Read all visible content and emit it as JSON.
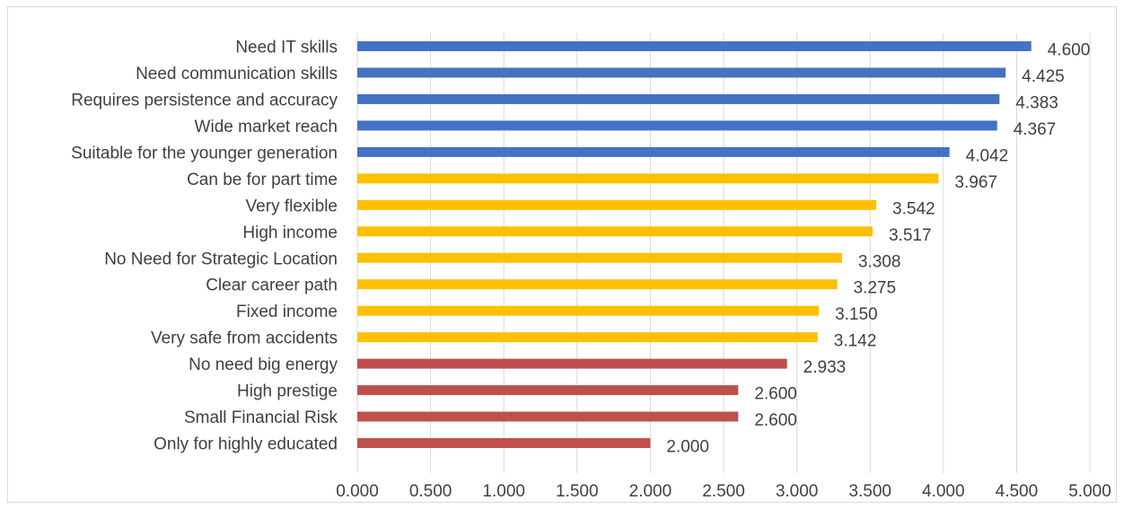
{
  "chart_data": {
    "type": "bar",
    "orientation": "horizontal",
    "title": "",
    "xlabel": "",
    "ylabel": "",
    "xlim": [
      0,
      5
    ],
    "grid": true,
    "legend": "none",
    "x_ticks": [
      "0.000",
      "0.500",
      "1.000",
      "1.500",
      "2.000",
      "2.500",
      "3.000",
      "3.500",
      "4.000",
      "4.500",
      "5.000"
    ],
    "categories": [
      "Need IT skills",
      "Need communication skills",
      "Requires persistence and accuracy",
      "Wide market reach",
      "Suitable for the younger generation",
      "Can be for part time",
      "Very flexible",
      "High income",
      "No Need for Strategic Location",
      "Clear career path",
      "Fixed income",
      "Very safe from accidents",
      "No need big energy",
      "High prestige",
      "Small Financial Risk",
      "Only for highly educated"
    ],
    "values": [
      4.6,
      4.425,
      4.383,
      4.367,
      4.042,
      3.967,
      3.542,
      3.517,
      3.308,
      3.275,
      3.15,
      3.142,
      2.933,
      2.6,
      2.6,
      2.0
    ],
    "value_labels": [
      "4.600",
      "4.425",
      "4.383",
      "4.367",
      "4.042",
      "3.967",
      "3.542",
      "3.517",
      "3.308",
      "3.275",
      "3.150",
      "3.142",
      "2.933",
      "2.600",
      "2.600",
      "2.000"
    ],
    "bar_colors": [
      "#4472c4",
      "#4472c4",
      "#4472c4",
      "#4472c4",
      "#4472c4",
      "#ffc000",
      "#ffc000",
      "#ffc000",
      "#ffc000",
      "#ffc000",
      "#ffc000",
      "#ffc000",
      "#c0504d",
      "#c0504d",
      "#c0504d",
      "#c0504d"
    ]
  }
}
